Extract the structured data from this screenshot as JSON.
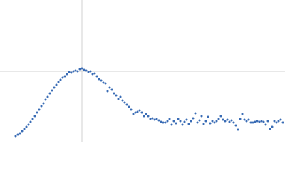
{
  "chart_data": {
    "type": "scatter",
    "color": "#3a6cb5",
    "xlim": [
      0,
      400
    ],
    "ylim": [
      0,
      200
    ],
    "crosshair": {
      "x": 115,
      "y": 100
    },
    "x": [
      22,
      25,
      28,
      31,
      34,
      37,
      40,
      43,
      46,
      49,
      52,
      55,
      58,
      61,
      64,
      67,
      70,
      73,
      76,
      79,
      82,
      85,
      88,
      91,
      94,
      97,
      100,
      103,
      106,
      109,
      112,
      115,
      118,
      121,
      124,
      127,
      130,
      133,
      136,
      139,
      142,
      145,
      148,
      151,
      154,
      157,
      160,
      163,
      166,
      169,
      172,
      175,
      178,
      181,
      184,
      187,
      190,
      193,
      196,
      199,
      202,
      205,
      208,
      211,
      214,
      217,
      220,
      223,
      226,
      229,
      232,
      235,
      238,
      241,
      244,
      247,
      250,
      253,
      256,
      259,
      262,
      265,
      268,
      271,
      274,
      277,
      280,
      283,
      286,
      289,
      292,
      295,
      298,
      301,
      304,
      307,
      310,
      313,
      316,
      319,
      322,
      325,
      328,
      331,
      334,
      337,
      340,
      343,
      346,
      349,
      352,
      355,
      358,
      361,
      364,
      367,
      370,
      373,
      376,
      379,
      382,
      385,
      388,
      391,
      394,
      397
    ],
    "values": [
      9,
      11,
      13,
      16,
      19,
      22,
      25,
      29,
      33,
      37,
      42,
      46,
      51,
      55,
      60,
      64,
      69,
      73,
      77,
      81,
      85,
      88,
      91,
      93,
      96,
      99,
      98,
      100,
      101,
      100,
      103,
      104,
      102,
      101,
      99,
      100,
      96,
      97,
      93,
      89,
      87,
      84,
      83,
      72,
      77,
      74,
      69,
      66,
      61,
      64,
      59,
      56,
      53,
      50,
      46,
      40,
      42,
      43,
      45,
      42,
      37,
      40,
      37,
      33,
      34,
      32,
      33,
      31,
      29,
      28,
      28,
      30,
      33,
      25,
      30,
      27,
      33,
      30,
      25,
      29,
      32,
      26,
      30,
      34,
      41,
      28,
      31,
      37,
      26,
      30,
      36,
      27,
      30,
      28,
      30,
      33,
      37,
      32,
      30,
      32,
      29,
      31,
      28,
      24,
      18,
      33,
      40,
      32,
      30,
      32,
      28,
      28,
      29,
      30,
      29,
      30,
      29,
      25,
      30,
      19,
      22,
      30,
      28,
      30,
      32,
      28
    ]
  }
}
